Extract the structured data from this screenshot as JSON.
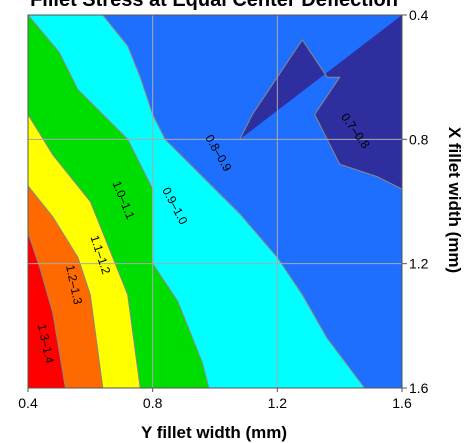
{
  "chart_data": {
    "type": "contour",
    "title": "Fillet Stress at Equal Center Deflection",
    "xlabel": "Y fillet width (mm)",
    "ylabel": "X fillet width (mm)",
    "xlim": [
      0.4,
      1.6
    ],
    "ylim": [
      0.4,
      1.6
    ],
    "x_ticks": [
      "0.4",
      "0.8",
      "1.2",
      "1.6"
    ],
    "y_ticks": [
      "0.4",
      "0.8",
      "1.2",
      "1.6"
    ],
    "y_axis_side": "right",
    "y_axis_inverted": true,
    "grid": true,
    "bands": [
      {
        "label": "1.3–1.4",
        "range": [
          1.3,
          1.4
        ],
        "color": "#ff0000"
      },
      {
        "label": "1.2–1.3",
        "range": [
          1.2,
          1.3
        ],
        "color": "#ff6a00"
      },
      {
        "label": "1.1–1.2",
        "range": [
          1.1,
          1.2
        ],
        "color": "#ffff00"
      },
      {
        "label": "1.0–1.1",
        "range": [
          1.0,
          1.1
        ],
        "color": "#00dd00"
      },
      {
        "label": "0.9–1.0",
        "range": [
          0.9,
          1.0
        ],
        "color": "#00ffff"
      },
      {
        "label": "0.8–0.9",
        "range": [
          0.8,
          0.9
        ],
        "color": "#1f6fff"
      },
      {
        "label": "0.7–0.8",
        "range": [
          0.7,
          0.8
        ],
        "color": "#2e2e9e"
      }
    ],
    "boundaries": [
      {
        "between": "1.3–1.4 / 1.2–1.3",
        "points": [
          [
            0.4,
            1.1
          ],
          [
            0.44,
            1.22
          ],
          [
            0.48,
            1.36
          ],
          [
            0.52,
            1.6
          ]
        ]
      },
      {
        "between": "1.2–1.3 / 1.1–1.2",
        "points": [
          [
            0.4,
            0.95
          ],
          [
            0.48,
            1.05
          ],
          [
            0.56,
            1.18
          ],
          [
            0.6,
            1.3
          ],
          [
            0.64,
            1.6
          ]
        ]
      },
      {
        "between": "1.1–1.2 / 1.0–1.1",
        "points": [
          [
            0.4,
            0.72
          ],
          [
            0.48,
            0.85
          ],
          [
            0.6,
            1.0
          ],
          [
            0.64,
            1.1
          ],
          [
            0.72,
            1.3
          ],
          [
            0.76,
            1.6
          ]
        ]
      },
      {
        "between": "1.0–1.1 / 0.9–1.0",
        "points": [
          [
            0.4,
            0.4
          ],
          [
            0.5,
            0.52
          ],
          [
            0.56,
            0.64
          ],
          [
            0.64,
            0.72
          ],
          [
            0.72,
            0.8
          ],
          [
            0.8,
            0.96
          ],
          [
            0.8,
            1.2
          ],
          [
            0.88,
            1.32
          ],
          [
            0.96,
            1.52
          ],
          [
            0.98,
            1.6
          ]
        ]
      },
      {
        "between": "0.9–1.0 / 0.8–0.9",
        "points": [
          [
            0.64,
            0.4
          ],
          [
            0.72,
            0.5
          ],
          [
            0.76,
            0.6
          ],
          [
            0.8,
            0.72
          ],
          [
            0.84,
            0.8
          ],
          [
            0.96,
            0.92
          ],
          [
            1.08,
            1.04
          ],
          [
            1.2,
            1.18
          ],
          [
            1.28,
            1.3
          ],
          [
            1.36,
            1.44
          ],
          [
            1.48,
            1.6
          ]
        ]
      },
      {
        "between": "0.8–0.9 / 0.7–0.8",
        "points": [
          [
            1.08,
            0.8
          ],
          [
            1.12,
            0.72
          ],
          [
            1.2,
            0.6
          ],
          [
            1.28,
            0.48
          ],
          [
            1.36,
            0.6
          ],
          [
            1.4,
            0.6
          ],
          [
            1.32,
            0.72
          ],
          [
            1.36,
            0.8
          ],
          [
            1.4,
            0.88
          ],
          [
            1.52,
            0.92
          ],
          [
            1.6,
            0.96
          ]
        ]
      }
    ]
  }
}
